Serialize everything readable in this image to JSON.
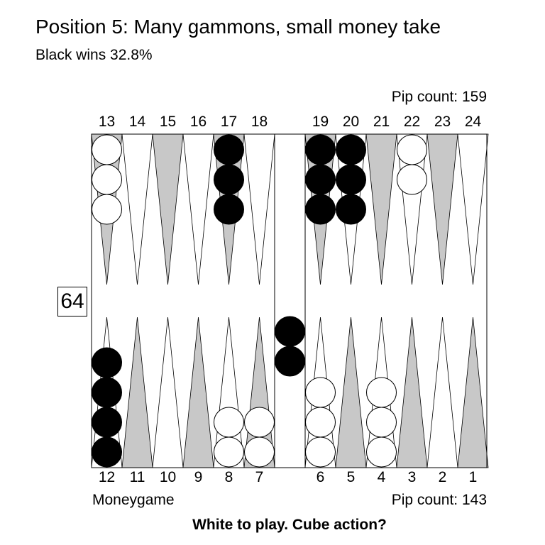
{
  "title": "Position 5: Many gammons, small money take",
  "subtitle": "Black wins 32.8%",
  "pip_count_top": "Pip count: 159",
  "pip_count_bottom": "Pip count: 143",
  "game_type": "Moneygame",
  "prompt": "White to play. Cube action?",
  "cube_value": "64",
  "point_labels_top": [
    "13",
    "14",
    "15",
    "16",
    "17",
    "18",
    "19",
    "20",
    "21",
    "22",
    "23",
    "24"
  ],
  "point_labels_bottom": [
    "12",
    "11",
    "10",
    "9",
    "8",
    "7",
    "6",
    "5",
    "4",
    "3",
    "2",
    "1"
  ],
  "colors": {
    "dark_point": "#c8c8c8",
    "light_point": "#ffffff",
    "black_checker": "#000000",
    "white_checker": "#ffffff"
  },
  "position": {
    "white": [
      {
        "point": 13,
        "count": 3
      },
      {
        "point": 22,
        "count": 2
      },
      {
        "point": 8,
        "count": 2
      },
      {
        "point": 7,
        "count": 2
      },
      {
        "point": 6,
        "count": 3
      },
      {
        "point": 4,
        "count": 3
      }
    ],
    "black": [
      {
        "point": 17,
        "count": 3
      },
      {
        "point": 19,
        "count": 3
      },
      {
        "point": 20,
        "count": 3
      },
      {
        "point": 12,
        "count": 4
      }
    ],
    "black_on_bar": 2
  }
}
